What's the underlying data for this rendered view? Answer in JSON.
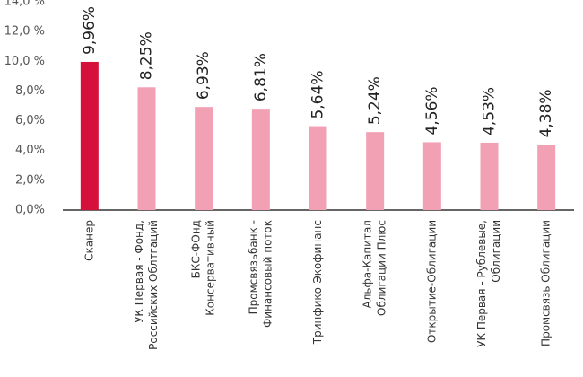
{
  "chart_data": {
    "type": "bar",
    "categories": [
      [
        "Сканер"
      ],
      [
        "УК Первая - Фонд,",
        "Российских Облтгаций"
      ],
      [
        "БКС-ФОнд",
        "Консервативный"
      ],
      [
        "Промсвязьбанк -",
        "Финансовый поток"
      ],
      [
        "Тринфико-Экофинанс"
      ],
      [
        "Альфа-Капитал",
        "Облигации Плюс"
      ],
      [
        "Открытие-Облигации"
      ],
      [
        "УК Первая - Рублевые,",
        "Облигации"
      ],
      [
        "Промсвязь Облигации"
      ]
    ],
    "values": [
      9.96,
      8.25,
      6.93,
      6.81,
      5.64,
      5.24,
      4.56,
      4.53,
      4.38
    ],
    "value_labels": [
      "9,96%",
      "8,25%",
      "6,93%",
      "6,81%",
      "5,64%",
      "5,24%",
      "4,56%",
      "4,53%",
      "4,38%"
    ],
    "colors": [
      "#d5103b",
      "#f2a0b3",
      "#f2a0b3",
      "#f2a0b3",
      "#f2a0b3",
      "#f2a0b3",
      "#f2a0b3",
      "#f2a0b3",
      "#f2a0b3"
    ],
    "ylim": [
      0,
      14
    ],
    "yticks": [
      {
        "value": 0,
        "label": "0,0%"
      },
      {
        "value": 2,
        "label": "2,0%"
      },
      {
        "value": 4,
        "label": "4,0%"
      },
      {
        "value": 6,
        "label": "6,0%"
      },
      {
        "value": 8,
        "label": "8,0%"
      },
      {
        "value": 10,
        "label": "10,0 %"
      },
      {
        "value": 12,
        "label": "12,0 %"
      },
      {
        "value": 14,
        "label": "14,0 %"
      }
    ],
    "grid": false
  }
}
